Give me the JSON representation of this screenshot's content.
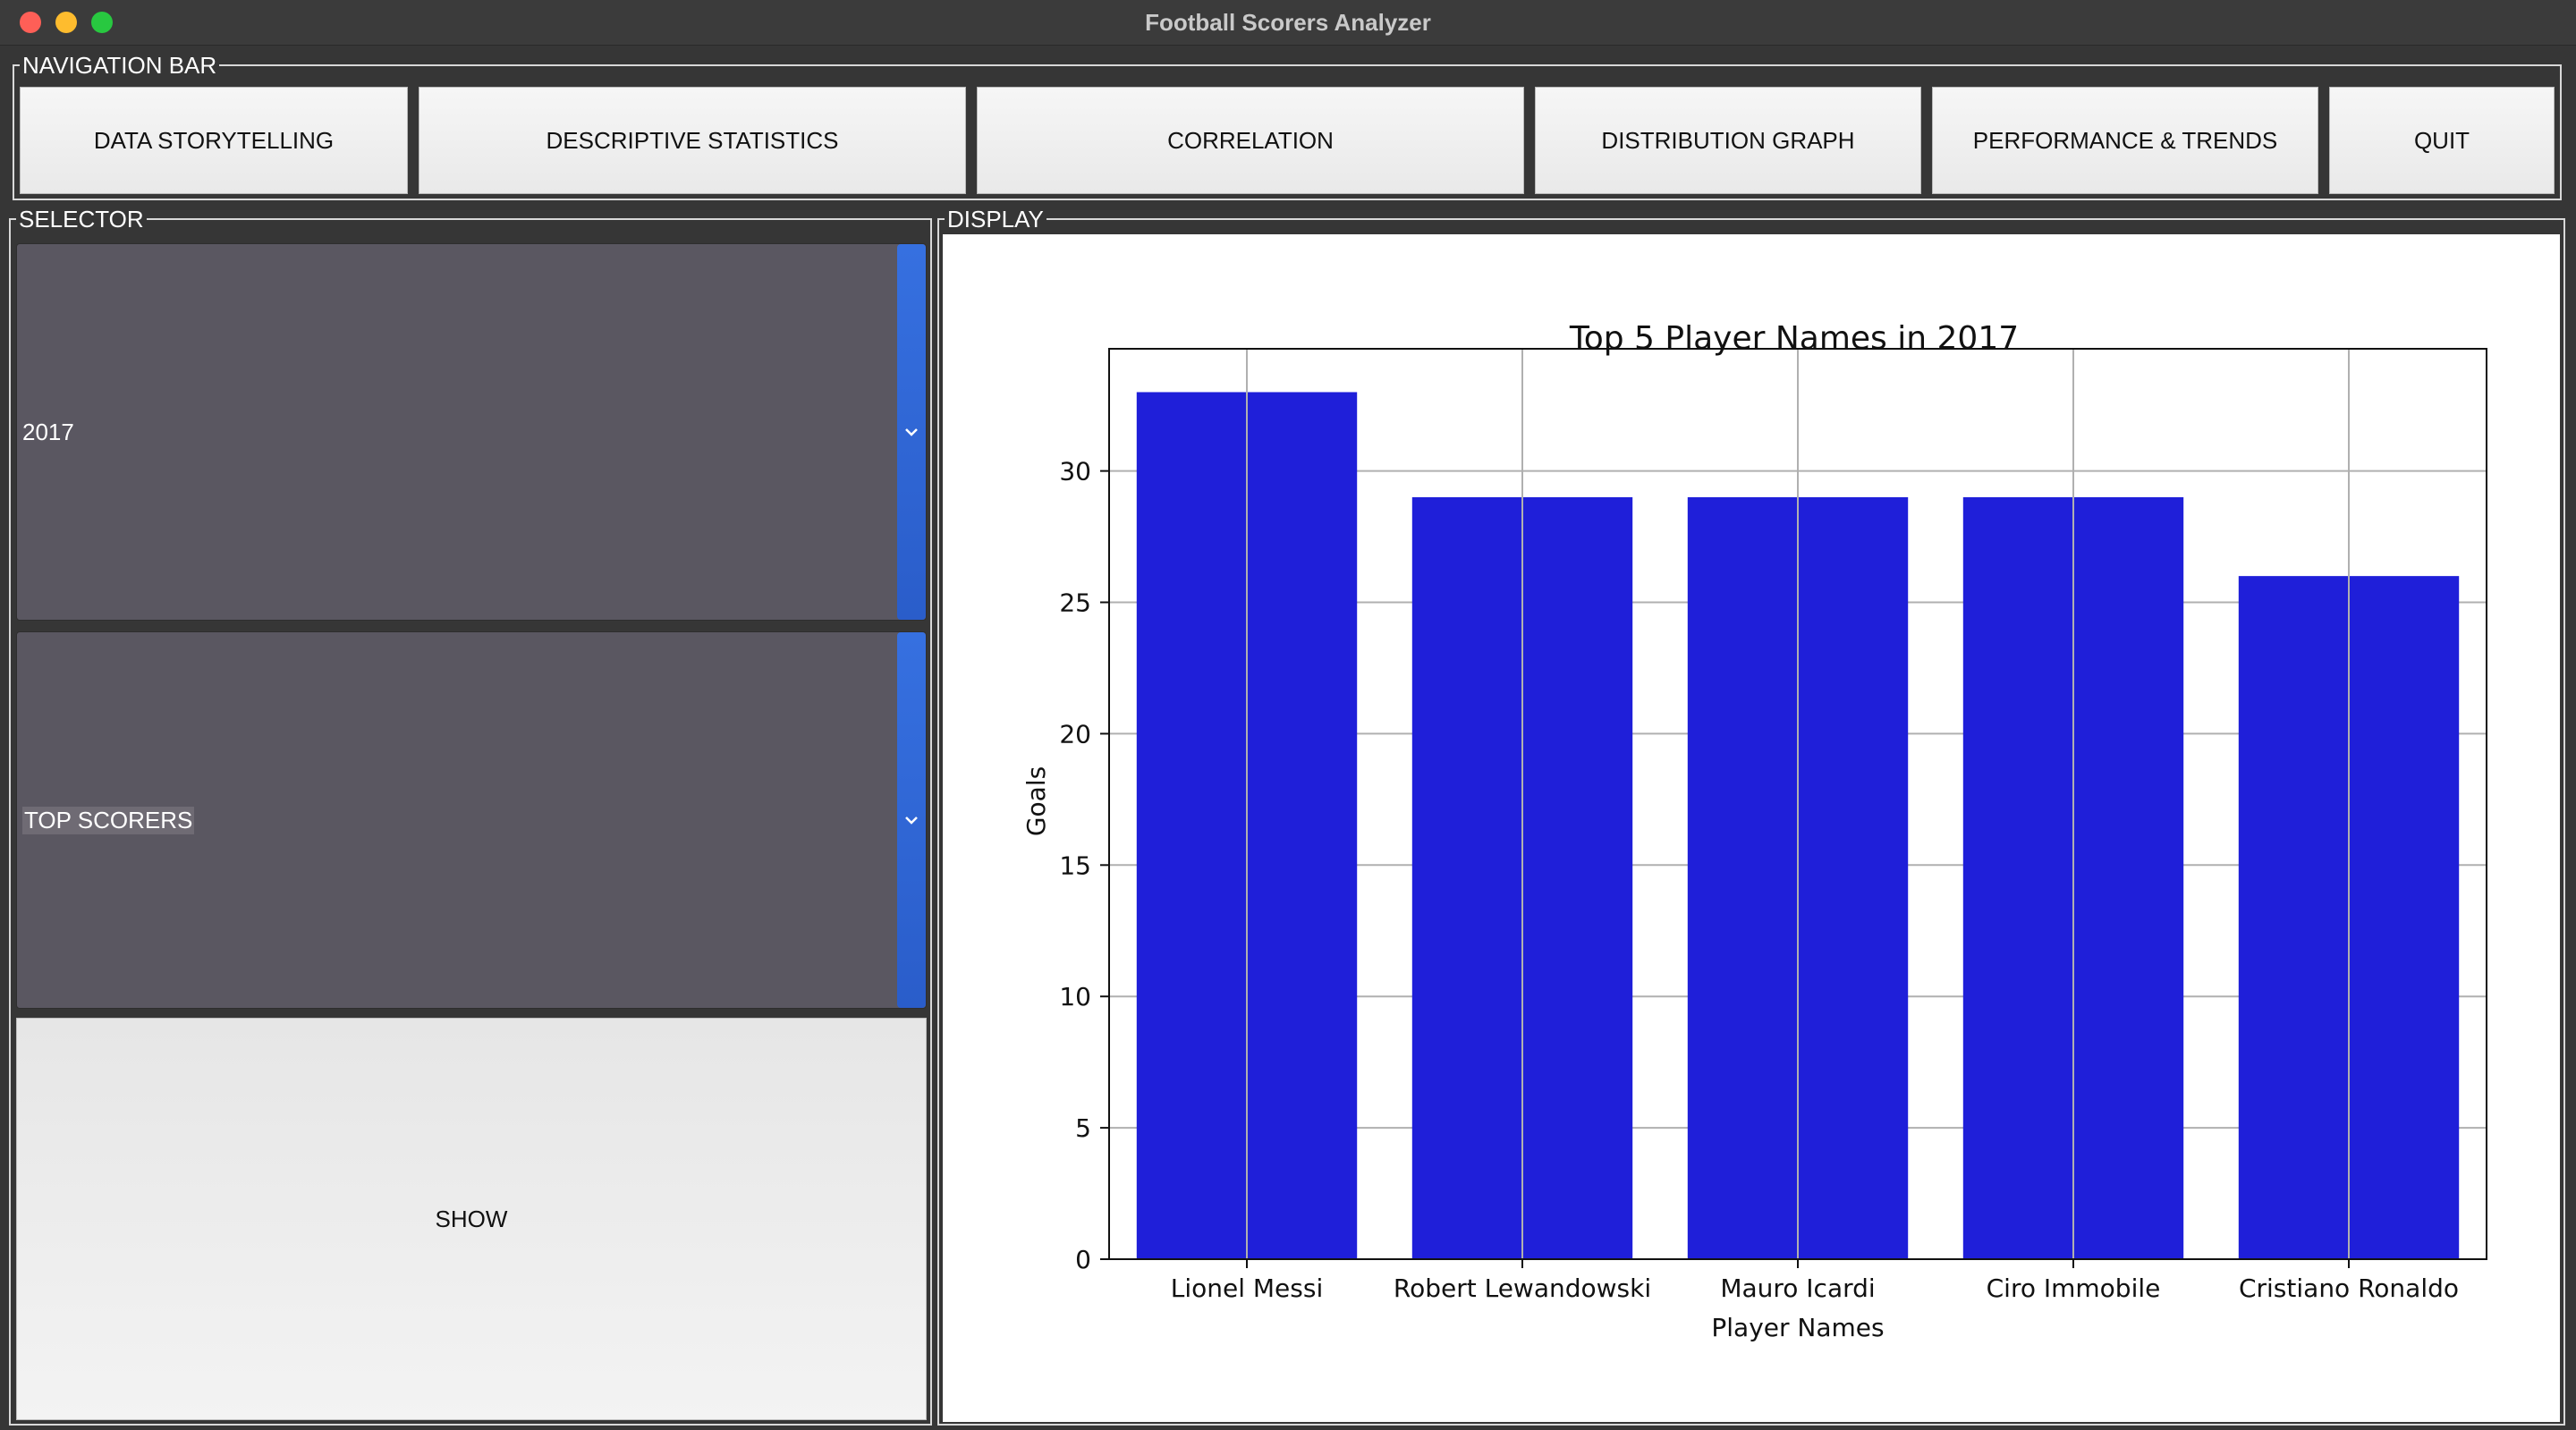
{
  "window": {
    "title": "Football Scorers Analyzer"
  },
  "navigation": {
    "label": "NAVIGATION BAR",
    "buttons": [
      {
        "label": "DATA STORYTELLING"
      },
      {
        "label": "DESCRIPTIVE STATISTICS"
      },
      {
        "label": "CORRELATION"
      },
      {
        "label": "DISTRIBUTION GRAPH"
      },
      {
        "label": "PERFORMANCE & TRENDS"
      },
      {
        "label": "QUIT"
      }
    ]
  },
  "selector": {
    "label": "SELECTOR",
    "year": {
      "value": "2017"
    },
    "metric": {
      "value": "TOP SCORERS"
    },
    "show_label": "SHOW"
  },
  "display": {
    "label": "DISPLAY"
  },
  "colors": {
    "bar": "#1f1fd9",
    "accent": "#3670e0"
  },
  "chart_data": {
    "type": "bar",
    "title": "Top 5 Player Names in 2017",
    "xlabel": "Player Names",
    "ylabel": "Goals",
    "categories": [
      "Lionel Messi",
      "Robert Lewandowski",
      "Mauro Icardi",
      "Ciro Immobile",
      "Cristiano Ronaldo"
    ],
    "values": [
      33,
      29,
      29,
      29,
      26
    ],
    "ylim": [
      0,
      34.65
    ],
    "yticks": [
      0,
      5,
      10,
      15,
      20,
      25,
      30
    ],
    "grid": true
  }
}
